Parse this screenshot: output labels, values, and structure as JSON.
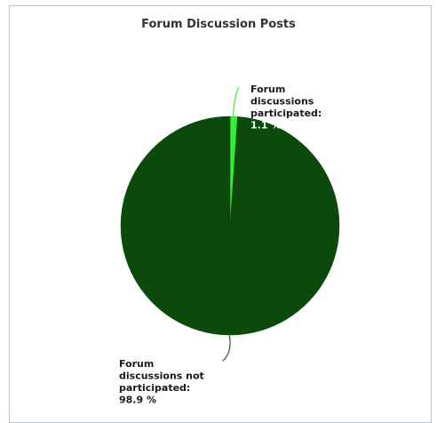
{
  "chart_data": {
    "type": "pie",
    "title": "Forum Discussion Posts",
    "slices": [
      {
        "name": "Forum discussions participated",
        "label_lines": [
          "Forum",
          "discussions",
          "participated:"
        ],
        "value_label": "1.1 %",
        "value": 1.1,
        "color": "#33ee33"
      },
      {
        "name": "Forum discussions not participated",
        "label_lines": [
          "Forum",
          "discussions not",
          "participated:"
        ],
        "value_label": "98.9 %",
        "value": 98.9,
        "color": "#0b4a0b"
      }
    ],
    "legend": "none"
  }
}
